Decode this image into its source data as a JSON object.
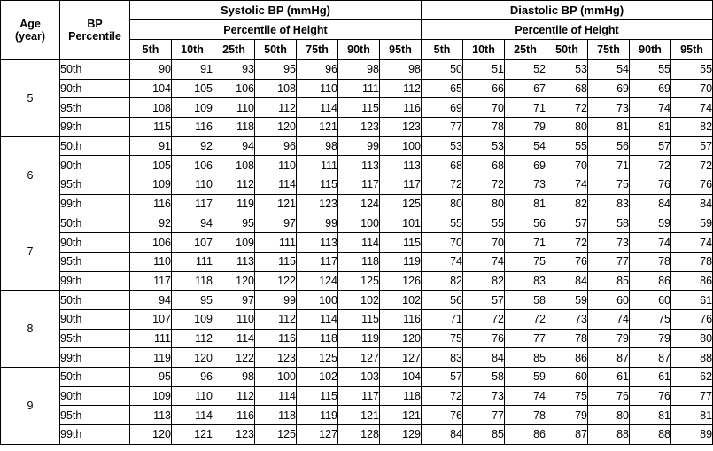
{
  "headers": {
    "age": "Age (year)",
    "bp_percentile": "BP Percentile",
    "systolic": "Systolic BP (mmHg)",
    "diastolic": "Diastolic BP (mmHg)",
    "percentile_of_height": "Percentile of Height",
    "height_percentiles": [
      "5th",
      "10th",
      "25th",
      "50th",
      "75th",
      "90th",
      "95th"
    ]
  },
  "groups": [
    {
      "age": "5",
      "rows": [
        {
          "pct": "50th",
          "sys": [
            "90",
            "91",
            "93",
            "95",
            "96",
            "98",
            "98"
          ],
          "dia": [
            "50",
            "51",
            "52",
            "53",
            "54",
            "55",
            "55"
          ]
        },
        {
          "pct": "90th",
          "sys": [
            "104",
            "105",
            "106",
            "108",
            "110",
            "111",
            "112"
          ],
          "dia": [
            "65",
            "66",
            "67",
            "68",
            "69",
            "69",
            "70"
          ]
        },
        {
          "pct": "95th",
          "sys": [
            "108",
            "109",
            "110",
            "112",
            "114",
            "115",
            "116"
          ],
          "dia": [
            "69",
            "70",
            "71",
            "72",
            "73",
            "74",
            "74"
          ]
        },
        {
          "pct": "99th",
          "sys": [
            "115",
            "116",
            "118",
            "120",
            "121",
            "123",
            "123"
          ],
          "dia": [
            "77",
            "78",
            "79",
            "80",
            "81",
            "81",
            "82"
          ]
        }
      ]
    },
    {
      "age": "6",
      "rows": [
        {
          "pct": "50th",
          "sys": [
            "91",
            "92",
            "94",
            "96",
            "98",
            "99",
            "100"
          ],
          "dia": [
            "53",
            "53",
            "54",
            "55",
            "56",
            "57",
            "57"
          ]
        },
        {
          "pct": "90th",
          "sys": [
            "105",
            "106",
            "108",
            "110",
            "111",
            "113",
            "113"
          ],
          "dia": [
            "68",
            "68",
            "69",
            "70",
            "71",
            "72",
            "72"
          ]
        },
        {
          "pct": "95th",
          "sys": [
            "109",
            "110",
            "112",
            "114",
            "115",
            "117",
            "117"
          ],
          "dia": [
            "72",
            "72",
            "73",
            "74",
            "75",
            "76",
            "76"
          ]
        },
        {
          "pct": "99th",
          "sys": [
            "116",
            "117",
            "119",
            "121",
            "123",
            "124",
            "125"
          ],
          "dia": [
            "80",
            "80",
            "81",
            "82",
            "83",
            "84",
            "84"
          ]
        }
      ]
    },
    {
      "age": "7",
      "rows": [
        {
          "pct": "50th",
          "sys": [
            "92",
            "94",
            "95",
            "97",
            "99",
            "100",
            "101"
          ],
          "dia": [
            "55",
            "55",
            "56",
            "57",
            "58",
            "59",
            "59"
          ]
        },
        {
          "pct": "90th",
          "sys": [
            "106",
            "107",
            "109",
            "111",
            "113",
            "114",
            "115"
          ],
          "dia": [
            "70",
            "70",
            "71",
            "72",
            "73",
            "74",
            "74"
          ]
        },
        {
          "pct": "95th",
          "sys": [
            "110",
            "111",
            "113",
            "115",
            "117",
            "118",
            "119"
          ],
          "dia": [
            "74",
            "74",
            "75",
            "76",
            "77",
            "78",
            "78"
          ]
        },
        {
          "pct": "99th",
          "sys": [
            "117",
            "118",
            "120",
            "122",
            "124",
            "125",
            "126"
          ],
          "dia": [
            "82",
            "82",
            "83",
            "84",
            "85",
            "86",
            "86"
          ]
        }
      ]
    },
    {
      "age": "8",
      "rows": [
        {
          "pct": "50th",
          "sys": [
            "94",
            "95",
            "97",
            "99",
            "100",
            "102",
            "102"
          ],
          "dia": [
            "56",
            "57",
            "58",
            "59",
            "60",
            "60",
            "61"
          ]
        },
        {
          "pct": "90th",
          "sys": [
            "107",
            "109",
            "110",
            "112",
            "114",
            "115",
            "116"
          ],
          "dia": [
            "71",
            "72",
            "72",
            "73",
            "74",
            "75",
            "76"
          ]
        },
        {
          "pct": "95th",
          "sys": [
            "111",
            "112",
            "114",
            "116",
            "118",
            "119",
            "120"
          ],
          "dia": [
            "75",
            "76",
            "77",
            "78",
            "79",
            "79",
            "80"
          ]
        },
        {
          "pct": "99th",
          "sys": [
            "119",
            "120",
            "122",
            "123",
            "125",
            "127",
            "127"
          ],
          "dia": [
            "83",
            "84",
            "85",
            "86",
            "87",
            "87",
            "88"
          ]
        }
      ]
    },
    {
      "age": "9",
      "rows": [
        {
          "pct": "50th",
          "sys": [
            "95",
            "96",
            "98",
            "100",
            "102",
            "103",
            "104"
          ],
          "dia": [
            "57",
            "58",
            "59",
            "60",
            "61",
            "61",
            "62"
          ]
        },
        {
          "pct": "90th",
          "sys": [
            "109",
            "110",
            "112",
            "114",
            "115",
            "117",
            "118"
          ],
          "dia": [
            "72",
            "73",
            "74",
            "75",
            "76",
            "76",
            "77"
          ]
        },
        {
          "pct": "95th",
          "sys": [
            "113",
            "114",
            "116",
            "118",
            "119",
            "121",
            "121"
          ],
          "dia": [
            "76",
            "77",
            "78",
            "79",
            "80",
            "81",
            "81"
          ]
        },
        {
          "pct": "99th",
          "sys": [
            "120",
            "121",
            "123",
            "125",
            "127",
            "128",
            "129"
          ],
          "dia": [
            "84",
            "85",
            "86",
            "87",
            "88",
            "88",
            "89"
          ]
        }
      ]
    }
  ]
}
